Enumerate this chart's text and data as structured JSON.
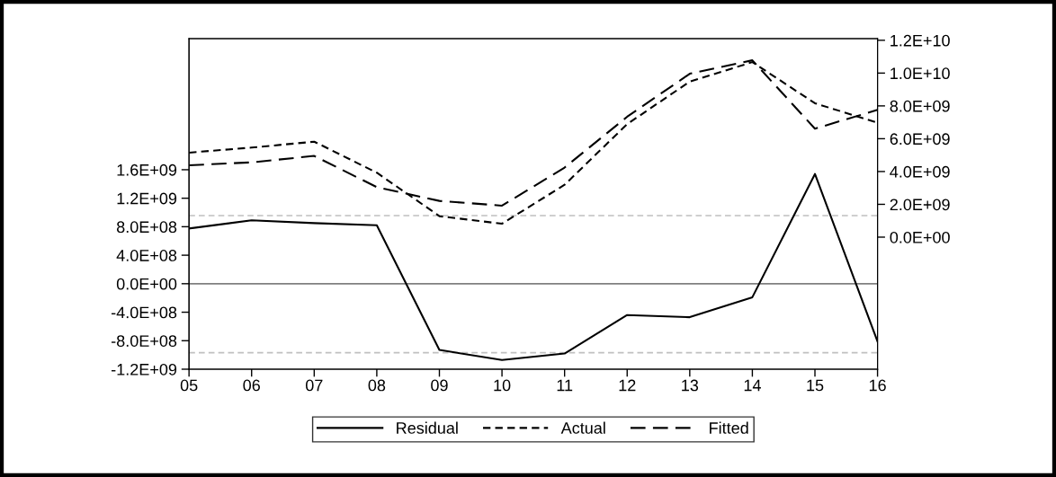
{
  "chart_data": {
    "type": "line",
    "categories": [
      "05",
      "06",
      "07",
      "08",
      "09",
      "10",
      "11",
      "12",
      "13",
      "14",
      "15",
      "16"
    ],
    "series": [
      {
        "name": "Residual",
        "color": "#000000",
        "line_style": "solid",
        "axis": "y",
        "values": [
          775000000.0,
          890000000.0,
          850000000.0,
          820000000.0,
          -930000000.0,
          -1070000000.0,
          -980000000.0,
          -440000000.0,
          -470000000.0,
          -190000000.0,
          1540000000.0,
          -810000000.0
        ]
      },
      {
        "name": "Actual",
        "color": "#000000",
        "line_style": "dashed",
        "axis": "y2",
        "values": [
          5150000000.0,
          5460000000.0,
          5820000000.0,
          3930000000.0,
          1280000000.0,
          820000000.0,
          3190000000.0,
          6890000000.0,
          9480000000.0,
          10670000000.0,
          8160000000.0,
          6980000000.0
        ]
      },
      {
        "name": "Fitted",
        "color": "#000000",
        "line_style": "longdash",
        "axis": "y2",
        "values": [
          4380000000.0,
          4560000000.0,
          4950000000.0,
          3050000000.0,
          2210000000.0,
          1920000000.0,
          4240000000.0,
          7340000000.0,
          9960000000.0,
          10780000000.0,
          6610000000.0,
          7760000000.0
        ]
      }
    ],
    "ylim": [
      -1200000000.0,
      3440000000.0
    ],
    "yticks": [
      {
        "value": -1200000000.0,
        "label": "-1.2E+09"
      },
      {
        "value": -800000000.0,
        "label": "-8.0E+08"
      },
      {
        "value": -400000000.0,
        "label": "-4.0E+08"
      },
      {
        "value": 0,
        "label": "0.0E+00"
      },
      {
        "value": 400000000.0,
        "label": "4.0E+08"
      },
      {
        "value": 800000000.0,
        "label": "8.0E+08"
      },
      {
        "value": 1200000000.0,
        "label": "1.2E+09"
      },
      {
        "value": 1600000000.0,
        "label": "1.6E+09"
      }
    ],
    "y2lim": [
      -8050000000.0,
      12100000000.0
    ],
    "y2ticks": [
      {
        "value": 0,
        "label": "0.0E+00"
      },
      {
        "value": 2000000000.0,
        "label": "2.0E+09"
      },
      {
        "value": 4000000000.0,
        "label": "4.0E+09"
      },
      {
        "value": 6000000000.0,
        "label": "6.0E+09"
      },
      {
        "value": 8000000000.0,
        "label": "8.0E+09"
      },
      {
        "value": 10000000000.0,
        "label": "1.0E+10"
      },
      {
        "value": 12000000000.0,
        "label": "1.2E+10"
      }
    ],
    "ref_lines": [
      {
        "axis": "y",
        "value": 0,
        "color": "#808080",
        "line_style": "solid"
      },
      {
        "axis": "y",
        "value": 956000000.0,
        "color": "#c0c0c0",
        "line_style": "dashed"
      },
      {
        "axis": "y",
        "value": -968000000.0,
        "color": "#c0c0c0",
        "line_style": "dashed"
      }
    ],
    "grid": false,
    "legend": "bottom",
    "marker": "none"
  }
}
